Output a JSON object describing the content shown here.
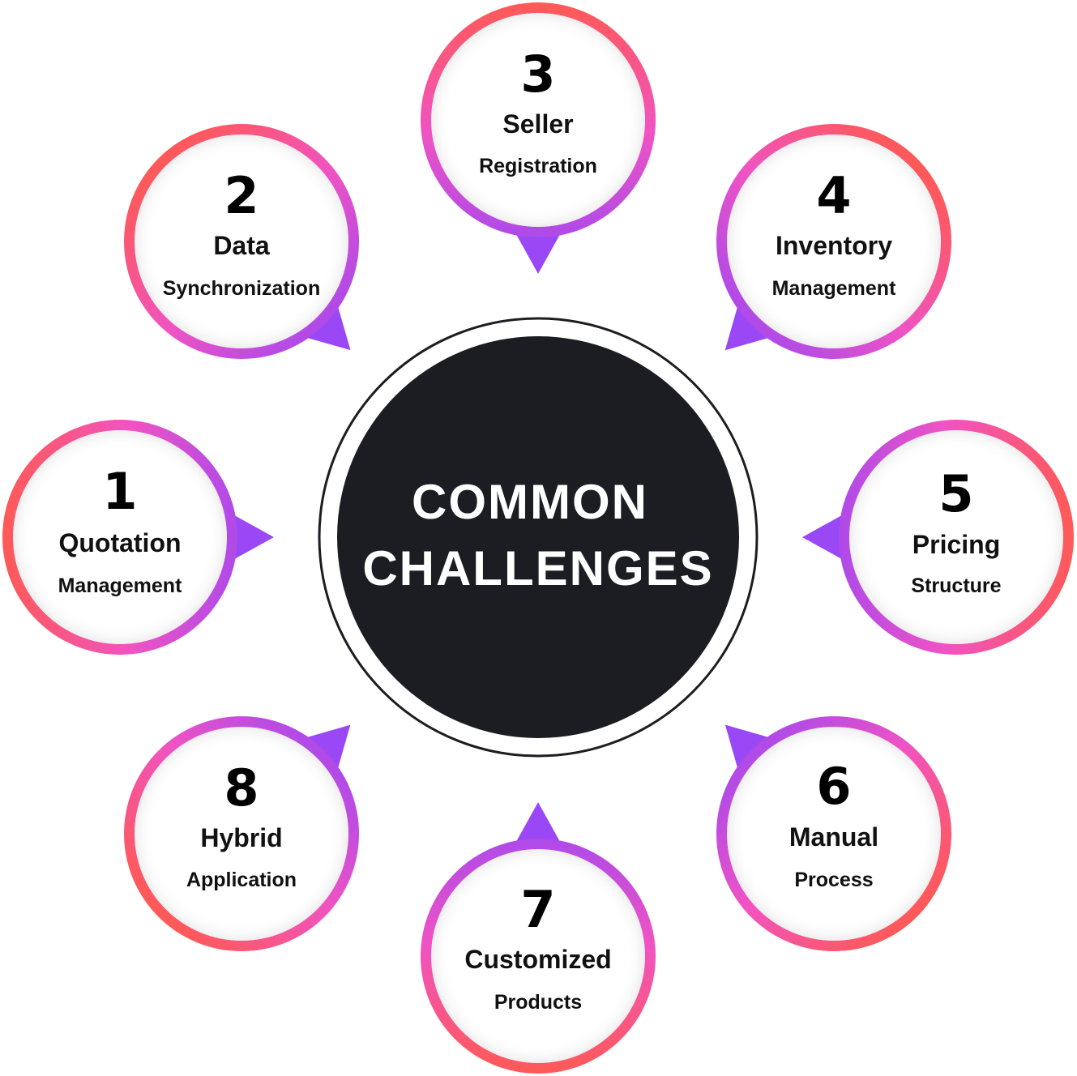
{
  "center": {
    "line1": "COMMON",
    "line2": "CHALLENGES"
  },
  "items": [
    {
      "number": "1",
      "title": "Quotation",
      "subtitle": "Management"
    },
    {
      "number": "2",
      "title": "Data",
      "subtitle": "Synchronization"
    },
    {
      "number": "3",
      "title": "Seller",
      "subtitle": "Registration"
    },
    {
      "number": "4",
      "title": "Inventory",
      "subtitle": "Management"
    },
    {
      "number": "5",
      "title": "Pricing",
      "subtitle": "Structure"
    },
    {
      "number": "6",
      "title": "Manual",
      "subtitle": "Process"
    },
    {
      "number": "7",
      "title": "Customized",
      "subtitle": "Products"
    },
    {
      "number": "8",
      "title": "Hybrid",
      "subtitle": "Application"
    }
  ],
  "colors": {
    "center_fill": "#1c1d22",
    "ring_outline": "#1c1d22",
    "gradient_red": "#ff5a4f",
    "gradient_pink": "#f053c3",
    "gradient_purple": "#9a47f5"
  }
}
